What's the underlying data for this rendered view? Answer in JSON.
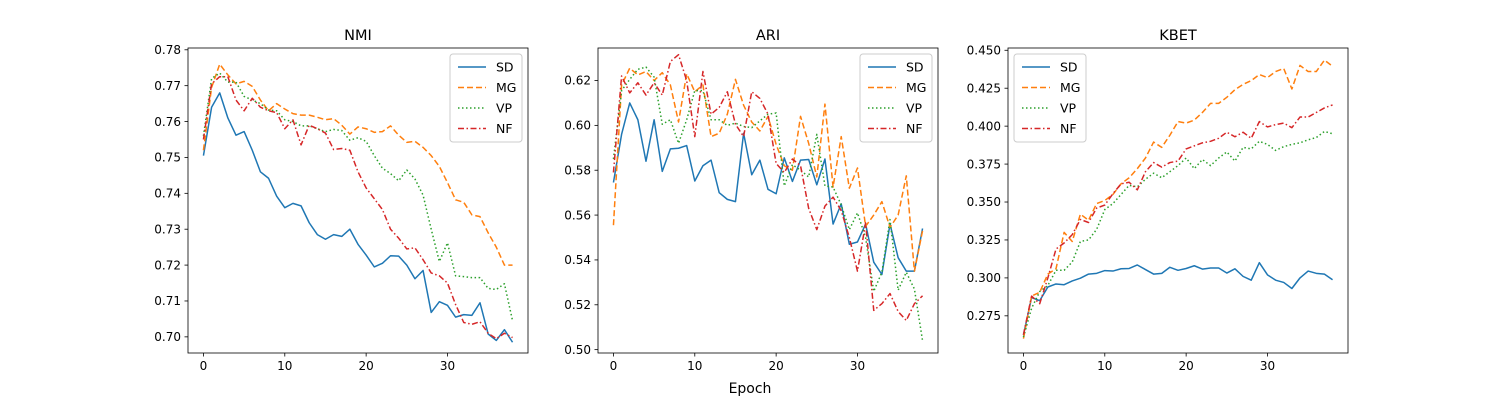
{
  "figure": {
    "xlabel": "Epoch"
  },
  "chart_data": [
    {
      "type": "line",
      "title": "NMI",
      "xlabel": "",
      "ylabel": "",
      "xlim": [
        -1.9,
        39.9
      ],
      "ylim": [
        0.6955,
        0.7805
      ],
      "xticks": [
        0,
        10,
        20,
        30
      ],
      "yticks": [
        0.7,
        0.71,
        0.72,
        0.73,
        0.74,
        0.75,
        0.76,
        0.77,
        0.78
      ],
      "ytick_decimals": 2,
      "legend_position": "top-right",
      "x": [
        0,
        1,
        2,
        3,
        4,
        5,
        6,
        7,
        8,
        9,
        10,
        11,
        12,
        13,
        14,
        15,
        16,
        17,
        18,
        19,
        20,
        21,
        22,
        23,
        24,
        25,
        26,
        27,
        28,
        29,
        30,
        31,
        32,
        33,
        34,
        35,
        36,
        37,
        38
      ],
      "series": [
        {
          "name": "SD",
          "color": "#1f77b4",
          "dash": "solid",
          "values": [
            0.7505,
            0.764,
            0.768,
            0.761,
            0.7562,
            0.7572,
            0.752,
            0.746,
            0.7442,
            0.7392,
            0.736,
            0.7372,
            0.7365,
            0.7318,
            0.7285,
            0.7272,
            0.7285,
            0.728,
            0.73,
            0.7258,
            0.7228,
            0.7195,
            0.7205,
            0.7226,
            0.7225,
            0.72,
            0.7162,
            0.7185,
            0.7068,
            0.7098,
            0.7088,
            0.7055,
            0.7062,
            0.706,
            0.7095,
            0.7008,
            0.699,
            0.702,
            0.6985
          ]
        },
        {
          "name": "MG",
          "color": "#ff7f0e",
          "dash": "dashed",
          "values": [
            0.752,
            0.7695,
            0.776,
            0.773,
            0.7705,
            0.7712,
            0.7698,
            0.766,
            0.763,
            0.765,
            0.7635,
            0.7622,
            0.7618,
            0.7618,
            0.7612,
            0.7605,
            0.7608,
            0.759,
            0.7565,
            0.7585,
            0.758,
            0.757,
            0.7572,
            0.7588,
            0.7562,
            0.7542,
            0.7545,
            0.7528,
            0.7505,
            0.7475,
            0.743,
            0.7382,
            0.7375,
            0.734,
            0.7335,
            0.729,
            0.725,
            0.72,
            0.72
          ]
        },
        {
          "name": "VP",
          "color": "#2ca02c",
          "dash": "dotted",
          "values": [
            0.756,
            0.772,
            0.7735,
            0.771,
            0.771,
            0.767,
            0.766,
            0.765,
            0.7632,
            0.763,
            0.7605,
            0.76,
            0.7588,
            0.7588,
            0.758,
            0.7572,
            0.7578,
            0.7575,
            0.7548,
            0.7555,
            0.7545,
            0.7505,
            0.747,
            0.7455,
            0.7435,
            0.7465,
            0.744,
            0.7395,
            0.73,
            0.721,
            0.7262,
            0.717,
            0.7168,
            0.7165,
            0.7165,
            0.7135,
            0.7132,
            0.7148,
            0.7045
          ]
        },
        {
          "name": "NF",
          "color": "#d62728",
          "dash": "dashdot",
          "values": [
            0.755,
            0.7705,
            0.7725,
            0.7725,
            0.766,
            0.763,
            0.7665,
            0.764,
            0.763,
            0.7625,
            0.758,
            0.7605,
            0.7535,
            0.759,
            0.758,
            0.7568,
            0.7522,
            0.7525,
            0.752,
            0.746,
            0.7415,
            0.7385,
            0.7355,
            0.73,
            0.7275,
            0.7245,
            0.7248,
            0.7215,
            0.7178,
            0.717,
            0.715,
            0.709,
            0.704,
            0.7035,
            0.7042,
            0.701,
            0.6995,
            0.701,
            0.6998
          ]
        }
      ]
    },
    {
      "type": "line",
      "title": "ARI",
      "xlabel": "",
      "ylabel": "",
      "xlim": [
        -1.9,
        39.9
      ],
      "ylim": [
        0.4985,
        0.6345
      ],
      "xticks": [
        0,
        10,
        20,
        30
      ],
      "yticks": [
        0.5,
        0.52,
        0.54,
        0.56,
        0.58,
        0.6,
        0.62
      ],
      "ytick_decimals": 2,
      "legend_position": "top-right",
      "x": [
        0,
        1,
        2,
        3,
        4,
        5,
        6,
        7,
        8,
        9,
        10,
        11,
        12,
        13,
        14,
        15,
        16,
        17,
        18,
        19,
        20,
        21,
        22,
        23,
        24,
        25,
        26,
        27,
        28,
        29,
        30,
        31,
        32,
        33,
        34,
        35,
        36,
        37,
        38
      ],
      "series": [
        {
          "name": "SD",
          "color": "#1f77b4",
          "dash": "solid",
          "values": [
            0.5745,
            0.596,
            0.61,
            0.6025,
            0.584,
            0.6025,
            0.5795,
            0.5895,
            0.5898,
            0.591,
            0.5752,
            0.582,
            0.5845,
            0.57,
            0.567,
            0.566,
            0.5965,
            0.578,
            0.5845,
            0.5715,
            0.5695,
            0.5855,
            0.575,
            0.5845,
            0.5848,
            0.5735,
            0.585,
            0.556,
            0.565,
            0.547,
            0.548,
            0.556,
            0.539,
            0.5335,
            0.556,
            0.541,
            0.535,
            0.535,
            0.554
          ]
        },
        {
          "name": "MG",
          "color": "#ff7f0e",
          "dash": "dashed",
          "values": [
            0.5555,
            0.618,
            0.6255,
            0.6225,
            0.624,
            0.62,
            0.6235,
            0.618,
            0.6015,
            0.623,
            0.615,
            0.618,
            0.595,
            0.5965,
            0.605,
            0.6205,
            0.609,
            0.6015,
            0.5975,
            0.604,
            0.5915,
            0.582,
            0.58,
            0.604,
            0.592,
            0.577,
            0.6095,
            0.5725,
            0.595,
            0.572,
            0.581,
            0.555,
            0.56,
            0.566,
            0.5545,
            0.56,
            0.5775,
            0.535,
            0.553
          ]
        },
        {
          "name": "VP",
          "color": "#2ca02c",
          "dash": "dotted",
          "values": [
            0.585,
            0.6155,
            0.6205,
            0.625,
            0.626,
            0.6215,
            0.6005,
            0.6025,
            0.592,
            0.6025,
            0.6155,
            0.6155,
            0.6025,
            0.6025,
            0.6,
            0.601,
            0.5995,
            0.599,
            0.602,
            0.605,
            0.6055,
            0.573,
            0.5825,
            0.58,
            0.577,
            0.596,
            0.573,
            0.5725,
            0.5645,
            0.5535,
            0.561,
            0.55,
            0.526,
            0.5345,
            0.558,
            0.5265,
            0.5345,
            0.527,
            0.504
          ]
        },
        {
          "name": "NF",
          "color": "#d62728",
          "dash": "dashdot",
          "values": [
            0.579,
            0.622,
            0.6145,
            0.619,
            0.6135,
            0.619,
            0.6135,
            0.6285,
            0.6315,
            0.62,
            0.595,
            0.624,
            0.605,
            0.608,
            0.615,
            0.6005,
            0.595,
            0.615,
            0.612,
            0.605,
            0.583,
            0.579,
            0.585,
            0.582,
            0.563,
            0.5535,
            0.564,
            0.568,
            0.562,
            0.55,
            0.535,
            0.5565,
            0.5175,
            0.5205,
            0.525,
            0.517,
            0.513,
            0.5205,
            0.524
          ]
        }
      ]
    },
    {
      "type": "line",
      "title": "KBET",
      "xlabel": "",
      "ylabel": "",
      "xlim": [
        -1.9,
        39.9
      ],
      "ylim": [
        0.2505,
        0.4515
      ],
      "xticks": [
        0,
        10,
        20,
        30
      ],
      "yticks": [
        0.275,
        0.3,
        0.325,
        0.35,
        0.375,
        0.4,
        0.425,
        0.45
      ],
      "ytick_decimals": 3,
      "legend_position": "top-left",
      "x": [
        0,
        1,
        2,
        3,
        4,
        5,
        6,
        7,
        8,
        9,
        10,
        11,
        12,
        13,
        14,
        15,
        16,
        17,
        18,
        19,
        20,
        21,
        22,
        23,
        24,
        25,
        26,
        27,
        28,
        29,
        30,
        31,
        32,
        33,
        34,
        35,
        36,
        37,
        38
      ],
      "series": [
        {
          "name": "SD",
          "color": "#1f77b4",
          "dash": "solid",
          "values": [
            0.2625,
            0.287,
            0.285,
            0.294,
            0.296,
            0.2955,
            0.298,
            0.2998,
            0.3025,
            0.303,
            0.3048,
            0.3045,
            0.306,
            0.3062,
            0.3085,
            0.3055,
            0.3025,
            0.303,
            0.307,
            0.305,
            0.3062,
            0.308,
            0.3058,
            0.3065,
            0.3065,
            0.3032,
            0.306,
            0.301,
            0.2985,
            0.31,
            0.302,
            0.2985,
            0.297,
            0.293,
            0.3,
            0.3045,
            0.303,
            0.3025,
            0.2988
          ]
        },
        {
          "name": "MG",
          "color": "#ff7f0e",
          "dash": "dashed",
          "values": [
            0.26,
            0.288,
            0.2905,
            0.3025,
            0.306,
            0.33,
            0.324,
            0.342,
            0.338,
            0.349,
            0.351,
            0.355,
            0.362,
            0.366,
            0.372,
            0.379,
            0.3895,
            0.386,
            0.394,
            0.403,
            0.402,
            0.404,
            0.409,
            0.415,
            0.415,
            0.419,
            0.424,
            0.4275,
            0.43,
            0.434,
            0.432,
            0.436,
            0.438,
            0.4245,
            0.44,
            0.436,
            0.436,
            0.4435,
            0.4395
          ]
        },
        {
          "name": "VP",
          "color": "#2ca02c",
          "dash": "dotted",
          "values": [
            0.261,
            0.28,
            0.291,
            0.295,
            0.305,
            0.305,
            0.3105,
            0.324,
            0.325,
            0.332,
            0.345,
            0.349,
            0.355,
            0.361,
            0.36,
            0.365,
            0.369,
            0.366,
            0.37,
            0.374,
            0.379,
            0.372,
            0.378,
            0.374,
            0.379,
            0.383,
            0.377,
            0.386,
            0.385,
            0.39,
            0.388,
            0.384,
            0.3865,
            0.388,
            0.389,
            0.391,
            0.3925,
            0.3965,
            0.395
          ]
        },
        {
          "name": "NF",
          "color": "#d62728",
          "dash": "dashdot",
          "values": [
            0.2625,
            0.288,
            0.283,
            0.3,
            0.319,
            0.323,
            0.3285,
            0.3385,
            0.3365,
            0.346,
            0.348,
            0.3555,
            0.362,
            0.363,
            0.358,
            0.37,
            0.376,
            0.373,
            0.376,
            0.377,
            0.385,
            0.387,
            0.389,
            0.39,
            0.392,
            0.396,
            0.393,
            0.396,
            0.392,
            0.403,
            0.3995,
            0.401,
            0.402,
            0.399,
            0.406,
            0.406,
            0.409,
            0.412,
            0.414
          ]
        }
      ]
    }
  ]
}
